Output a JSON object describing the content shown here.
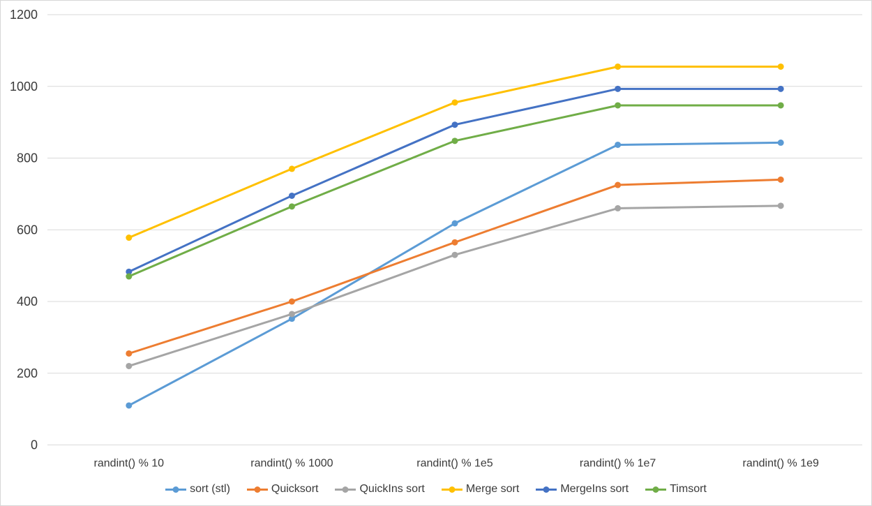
{
  "chart_data": {
    "type": "line",
    "title": "",
    "xlabel": "",
    "ylabel": "",
    "categories": [
      "randint() % 10",
      "randint() % 1000",
      "randint() % 1e5",
      "randint() % 1e7",
      "randint() % 1e9"
    ],
    "series": [
      {
        "name": "sort (stl)",
        "color": "#5B9BD5",
        "values": [
          110,
          352,
          618,
          837,
          843
        ]
      },
      {
        "name": "Quicksort",
        "color": "#ED7D31",
        "values": [
          255,
          400,
          565,
          725,
          740
        ]
      },
      {
        "name": "QuickIns sort",
        "color": "#A5A5A5",
        "values": [
          220,
          365,
          530,
          660,
          667
        ]
      },
      {
        "name": "Merge sort",
        "color": "#FFC000",
        "values": [
          578,
          770,
          955,
          1055,
          1055
        ]
      },
      {
        "name": "MergeIns sort",
        "color": "#4472C4",
        "values": [
          483,
          695,
          893,
          993,
          993
        ]
      },
      {
        "name": "Timsort",
        "color": "#70AD47",
        "values": [
          470,
          665,
          848,
          947,
          947
        ]
      }
    ],
    "ylim": [
      0,
      1200
    ],
    "ytick_step": 200,
    "ytick_labels": [
      "0",
      "200",
      "400",
      "600",
      "800",
      "1000",
      "1200"
    ],
    "grid": true,
    "legend_position": "bottom",
    "gridline_color": "#d9d9d9",
    "text_color": "#3a3a3a",
    "marker": "circle"
  }
}
